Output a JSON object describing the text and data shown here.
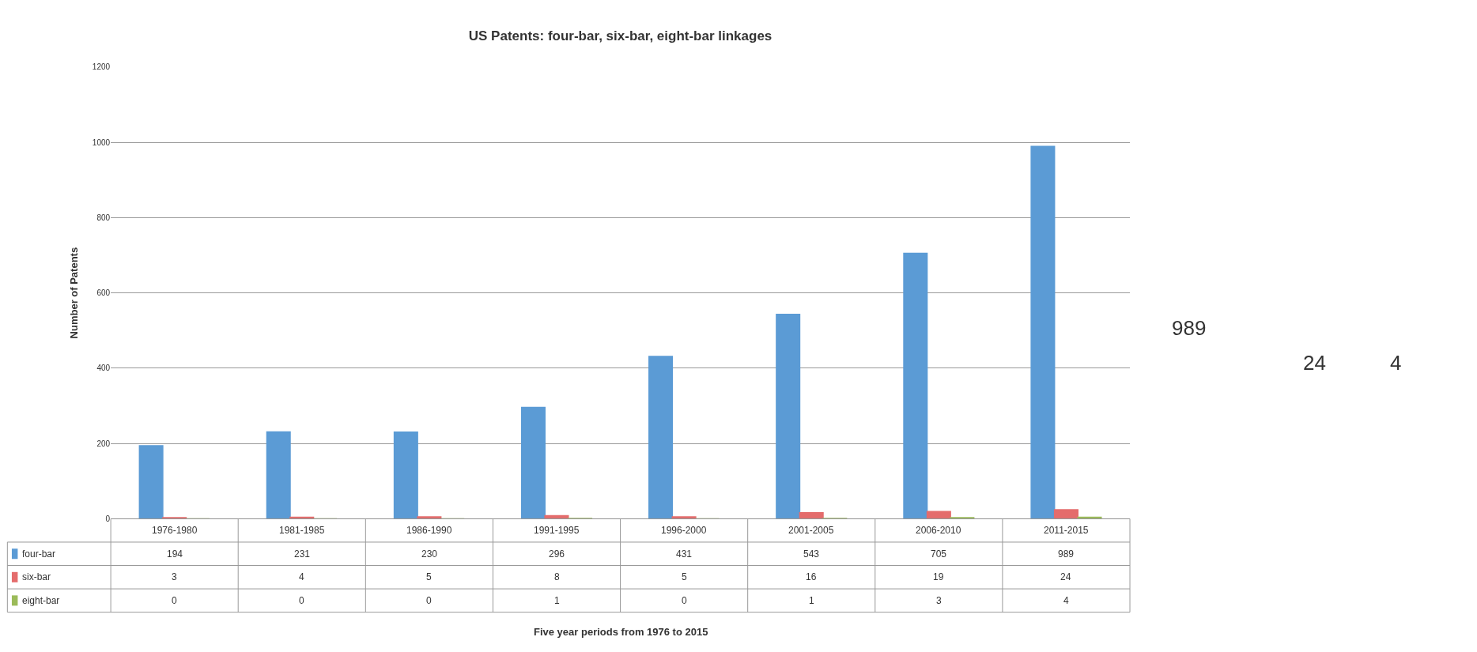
{
  "chart_data": {
    "type": "bar",
    "title": "US Patents: four-bar, six-bar, eight-bar linkages",
    "ylabel": "Number of Patents",
    "categories": [
      "1976-1980",
      "1981-1985",
      "1986-1990",
      "1991-1995",
      "1996-2000",
      "2001-2005",
      "2006-2010",
      "2011-2015"
    ],
    "series": [
      {
        "name": "four-bar",
        "color": "#5b9bd5",
        "values": [
          194,
          231,
          230,
          296,
          431,
          543,
          705,
          989
        ]
      },
      {
        "name": "six-bar",
        "color": "#e46c6c",
        "values": [
          3,
          4,
          5,
          8,
          5,
          16,
          19,
          24
        ]
      },
      {
        "name": "eight-bar",
        "color": "#9bbb59",
        "values": [
          0,
          0,
          0,
          1,
          0,
          1,
          3,
          4
        ]
      }
    ],
    "ylim": [
      0,
      1200
    ],
    "yticks": [
      0,
      200,
      400,
      600,
      800,
      1000,
      1200
    ],
    "grid": "y",
    "legend": "bottom left",
    "data_labels": true,
    "annotations": [
      "989",
      "24",
      "4",
      "Five year periods from 1976 to 2015"
    ]
  }
}
